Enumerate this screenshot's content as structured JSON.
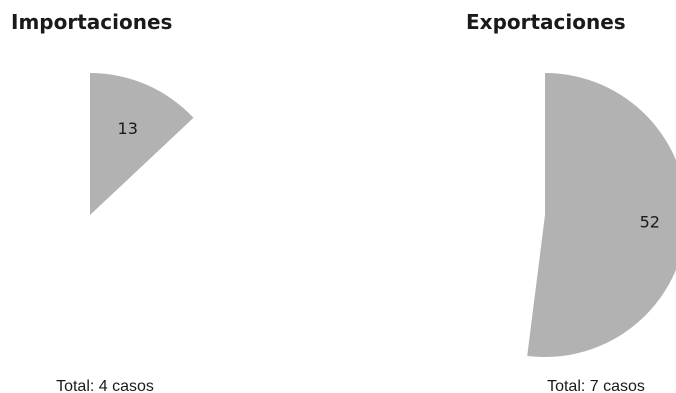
{
  "chart_data": [
    {
      "type": "pie",
      "title": "Importaciones",
      "slices": [
        {
          "label": "13",
          "value": 13
        }
      ],
      "total_text": "Total: 4 casos",
      "color": "#b2b2b2"
    },
    {
      "type": "pie",
      "title": "Exportaciones",
      "slices": [
        {
          "label": "52",
          "value": 52
        }
      ],
      "total_text": "Total: 7 casos",
      "color": "#b2b2b2"
    }
  ]
}
